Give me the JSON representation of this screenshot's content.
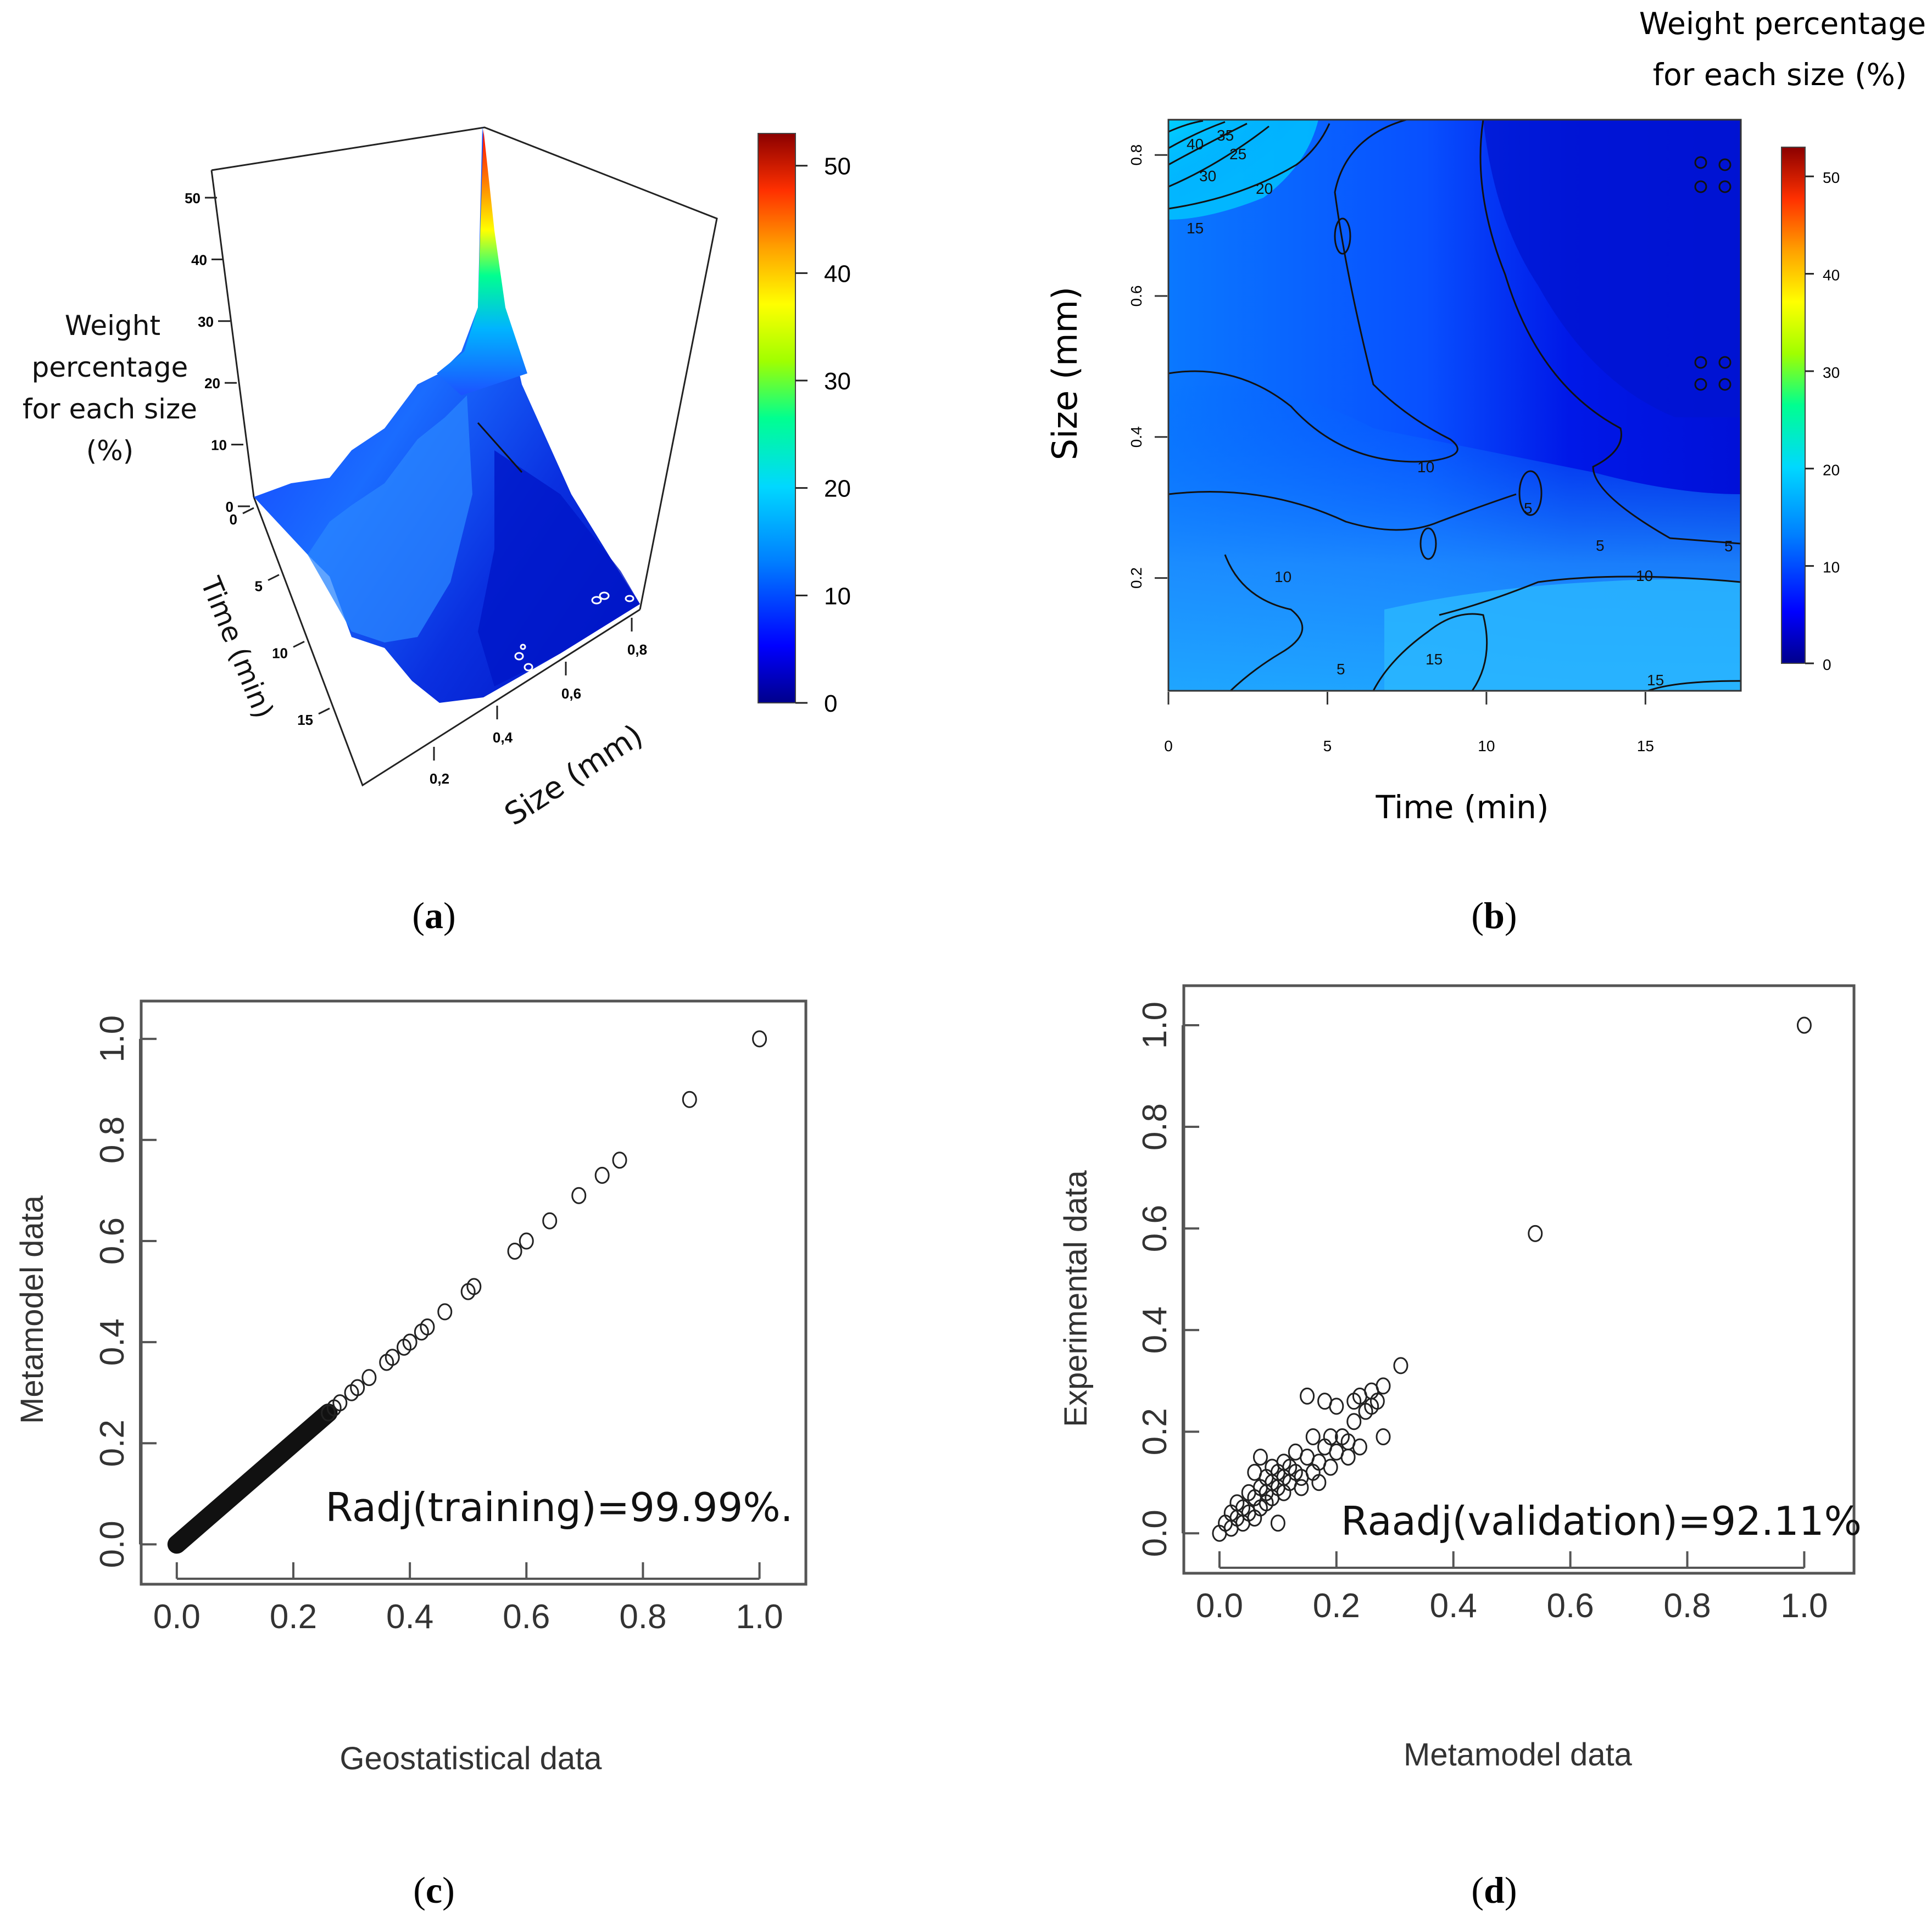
{
  "panels": {
    "a": {
      "label": "a",
      "chart_data": {
        "type": "surface-3d",
        "z_axis_label": [
          "Weight",
          "percentage",
          "for each size",
          "(%)"
        ],
        "z_ticks": [
          "0",
          "10",
          "20",
          "30",
          "40",
          "50"
        ],
        "time_axis_label": "Time (min)",
        "time_ticks": [
          "0",
          "5",
          "10",
          "15"
        ],
        "size_axis_label": "Size (mm)",
        "size_ticks": [
          "0,2",
          "0,4",
          "0,6",
          "0,8"
        ],
        "colorbar_ticks": [
          "0",
          "10",
          "20",
          "30",
          "40",
          "50"
        ],
        "zlim": [
          0,
          53
        ],
        "peak": {
          "time": 0,
          "size": 0.85,
          "value": 53
        }
      }
    },
    "b": {
      "label": "b",
      "chart_data": {
        "type": "heatmap",
        "colorbar_title": [
          "Weight percentage",
          "for each size (%)"
        ],
        "xlabel": "Time (min)",
        "ylabel": "Size (mm)",
        "x_ticks": [
          "0",
          "5",
          "10",
          "15"
        ],
        "y_ticks": [
          "0.2",
          "0.4",
          "0.6",
          "0.8"
        ],
        "colorbar_ticks": [
          "0",
          "10",
          "20",
          "30",
          "40",
          "50"
        ],
        "xlim": [
          0,
          18
        ],
        "ylim": [
          0.04,
          0.85
        ],
        "zlim": [
          0,
          53
        ],
        "contour_labels": [
          "40",
          "35",
          "30",
          "25",
          "20",
          "15",
          "10",
          "5",
          "10",
          "5",
          "5",
          "10",
          "15",
          "5",
          "15"
        ]
      }
    },
    "c": {
      "label": "c",
      "chart_data": {
        "type": "scatter",
        "xlabel": "Geostatistical data",
        "ylabel": "Metamodel data",
        "annotation": "Radj(training)=99.99%.",
        "x_ticks": [
          "0.0",
          "0.2",
          "0.4",
          "0.6",
          "0.8",
          "1.0"
        ],
        "y_ticks": [
          "0.0",
          "0.2",
          "0.4",
          "0.6",
          "0.8",
          "1.0"
        ],
        "xlim": [
          -0.03,
          1.04
        ],
        "ylim": [
          -0.03,
          1.04
        ],
        "points": [
          [
            0.26,
            0.26
          ],
          [
            0.27,
            0.27
          ],
          [
            0.28,
            0.28
          ],
          [
            0.3,
            0.3
          ],
          [
            0.31,
            0.31
          ],
          [
            0.33,
            0.33
          ],
          [
            0.36,
            0.36
          ],
          [
            0.37,
            0.37
          ],
          [
            0.39,
            0.39
          ],
          [
            0.4,
            0.4
          ],
          [
            0.42,
            0.42
          ],
          [
            0.43,
            0.43
          ],
          [
            0.46,
            0.46
          ],
          [
            0.5,
            0.5
          ],
          [
            0.51,
            0.51
          ],
          [
            0.58,
            0.58
          ],
          [
            0.6,
            0.6
          ],
          [
            0.64,
            0.64
          ],
          [
            0.69,
            0.69
          ],
          [
            0.73,
            0.73
          ],
          [
            0.76,
            0.76
          ],
          [
            0.88,
            0.88
          ],
          [
            1.0,
            1.0
          ]
        ],
        "dense_segment": {
          "from": 0.0,
          "to": 0.26
        }
      }
    },
    "d": {
      "label": "d",
      "chart_data": {
        "type": "scatter",
        "xlabel": "Metamodel data",
        "ylabel": "Experimental data",
        "annotation": "Raadj(validation)=92.11%",
        "x_ticks": [
          "0.0",
          "0.2",
          "0.4",
          "0.6",
          "0.8",
          "1.0"
        ],
        "y_ticks": [
          "0.0",
          "0.2",
          "0.4",
          "0.6",
          "0.8",
          "1.0"
        ],
        "xlim": [
          -0.03,
          1.04
        ],
        "ylim": [
          -0.03,
          1.04
        ],
        "points": [
          [
            0.0,
            0.0
          ],
          [
            0.01,
            0.02
          ],
          [
            0.02,
            0.04
          ],
          [
            0.02,
            0.01
          ],
          [
            0.03,
            0.06
          ],
          [
            0.03,
            0.03
          ],
          [
            0.04,
            0.05
          ],
          [
            0.04,
            0.02
          ],
          [
            0.05,
            0.08
          ],
          [
            0.05,
            0.04
          ],
          [
            0.06,
            0.07
          ],
          [
            0.06,
            0.03
          ],
          [
            0.06,
            0.12
          ],
          [
            0.07,
            0.09
          ],
          [
            0.07,
            0.05
          ],
          [
            0.07,
            0.15
          ],
          [
            0.08,
            0.11
          ],
          [
            0.08,
            0.06
          ],
          [
            0.08,
            0.08
          ],
          [
            0.09,
            0.13
          ],
          [
            0.09,
            0.1
          ],
          [
            0.09,
            0.07
          ],
          [
            0.1,
            0.02
          ],
          [
            0.1,
            0.12
          ],
          [
            0.1,
            0.09
          ],
          [
            0.11,
            0.14
          ],
          [
            0.11,
            0.11
          ],
          [
            0.11,
            0.08
          ],
          [
            0.12,
            0.1
          ],
          [
            0.12,
            0.13
          ],
          [
            0.13,
            0.12
          ],
          [
            0.13,
            0.16
          ],
          [
            0.14,
            0.11
          ],
          [
            0.14,
            0.09
          ],
          [
            0.15,
            0.27
          ],
          [
            0.15,
            0.15
          ],
          [
            0.16,
            0.12
          ],
          [
            0.16,
            0.19
          ],
          [
            0.17,
            0.14
          ],
          [
            0.17,
            0.1
          ],
          [
            0.18,
            0.26
          ],
          [
            0.18,
            0.17
          ],
          [
            0.19,
            0.13
          ],
          [
            0.19,
            0.19
          ],
          [
            0.2,
            0.25
          ],
          [
            0.2,
            0.16
          ],
          [
            0.21,
            0.19
          ],
          [
            0.22,
            0.18
          ],
          [
            0.22,
            0.15
          ],
          [
            0.23,
            0.26
          ],
          [
            0.23,
            0.22
          ],
          [
            0.24,
            0.17
          ],
          [
            0.24,
            0.27
          ],
          [
            0.25,
            0.24
          ],
          [
            0.26,
            0.28
          ],
          [
            0.26,
            0.25
          ],
          [
            0.27,
            0.26
          ],
          [
            0.28,
            0.29
          ],
          [
            0.28,
            0.19
          ],
          [
            0.31,
            0.33
          ],
          [
            0.54,
            0.59
          ],
          [
            1.0,
            1.0
          ]
        ]
      }
    }
  },
  "colors": {
    "ink": "#111111",
    "axis_gray": "#555555",
    "colormap": [
      "#00008b",
      "#0000ff",
      "#0080ff",
      "#00d8ff",
      "#00ff90",
      "#a0ff00",
      "#ffff00",
      "#ffa000",
      "#ff3000",
      "#8b0000"
    ]
  }
}
